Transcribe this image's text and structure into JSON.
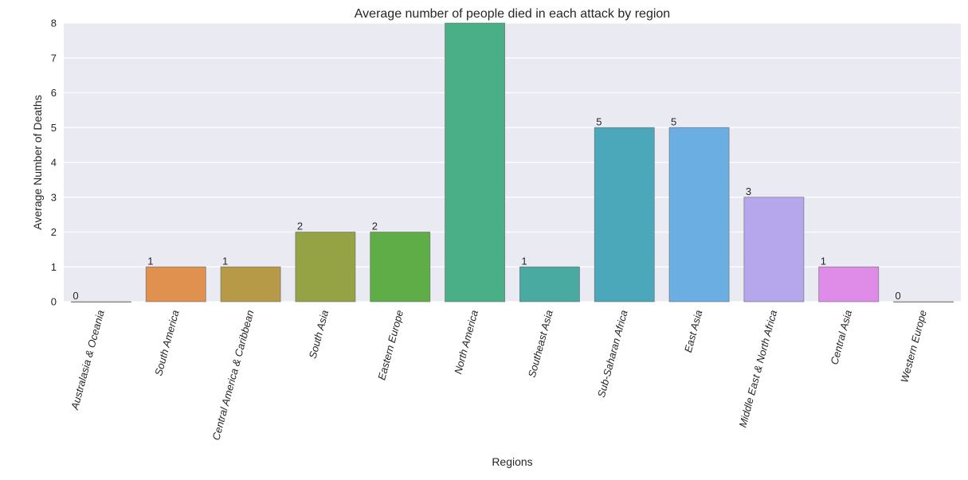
{
  "chart_data": {
    "type": "bar",
    "title": "Average number of people died in each attack by region",
    "xlabel": "Regions",
    "ylabel": "Average Number of Deaths",
    "ylim": [
      0,
      8
    ],
    "yticks": [
      0,
      1,
      2,
      3,
      4,
      5,
      6,
      7,
      8
    ],
    "grid": true,
    "categories": [
      "Australasia & Oceania",
      "South America",
      "Central America & Caribbean",
      "South Asia",
      "Eastern Europe",
      "North America",
      "Southeast Asia",
      "Sub-Saharan Africa",
      "East Asia",
      "Middle East & North Africa",
      "Central Asia",
      "Western Europe"
    ],
    "values": [
      0,
      1,
      1,
      2,
      2,
      8,
      1,
      5,
      5,
      3,
      1,
      0
    ],
    "data_labels": [
      "0",
      "1",
      "1",
      "2",
      "2",
      "",
      "1",
      "5",
      "5",
      "3",
      "1",
      "0"
    ],
    "colors": [
      "#e58e8e",
      "#e0904f",
      "#b79a47",
      "#96a345",
      "#5fad47",
      "#4aae86",
      "#48aaa0",
      "#4ba8bb",
      "#6baee2",
      "#b6a7ec",
      "#de8ce8",
      "#e993c4"
    ],
    "background": "#eaeaf2"
  }
}
